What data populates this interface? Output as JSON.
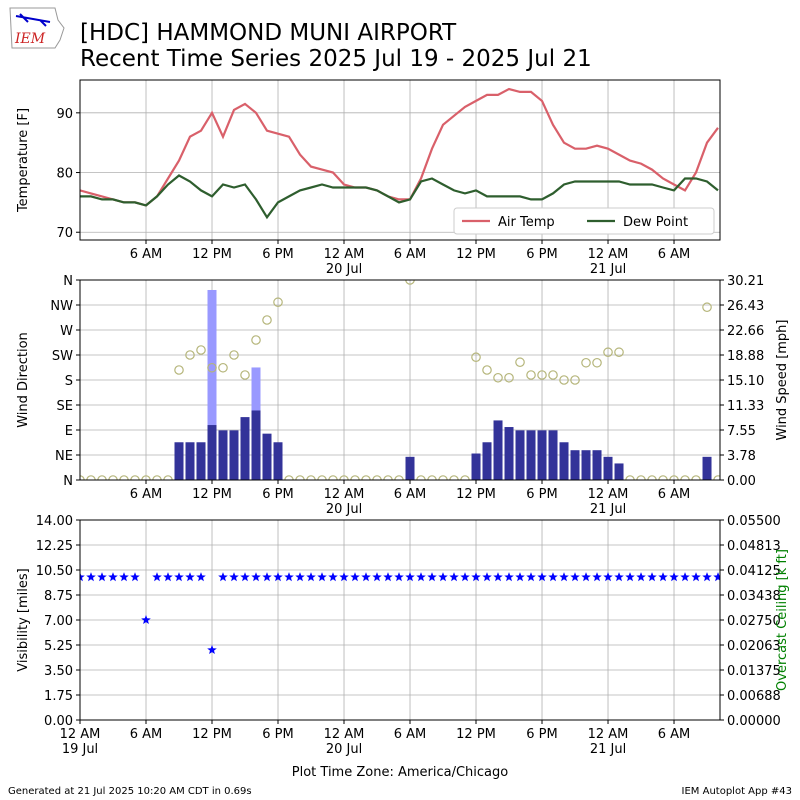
{
  "logo": "IEM",
  "title_lines": [
    "[HDC] HAMMOND MUNI AIRPORT",
    "Recent Time Series 2025 Jul 19 - 2025 Jul 21"
  ],
  "footer_left": "Generated at 21 Jul 2025 10:20 AM CDT in 0.69s",
  "footer_right": "IEM Autoplot App #43",
  "chart_data": [
    {
      "type": "line",
      "ylabel": "Temperature [F]",
      "grid": true,
      "legend": "lower right",
      "xlim": [
        0,
        58.18
      ],
      "ylim": [
        68.7,
        95.5
      ],
      "yticks": [
        70,
        80,
        90
      ],
      "xticks": [
        {
          "value": 6,
          "label": "6 AM"
        },
        {
          "value": 12,
          "label": "12 PM"
        },
        {
          "value": 18,
          "label": "6 PM"
        },
        {
          "value": 24,
          "label": "12 AM\n20 Jul"
        },
        {
          "value": 30,
          "label": "6 AM"
        },
        {
          "value": 36,
          "label": "12 PM"
        },
        {
          "value": 42,
          "label": "6 PM"
        },
        {
          "value": 48,
          "label": "12 AM\n21 Jul"
        },
        {
          "value": 54,
          "label": "6 AM"
        }
      ],
      "x": [
        0,
        1,
        2,
        3,
        4,
        5,
        6,
        7,
        8,
        9,
        10,
        11,
        12,
        13,
        14,
        15,
        16,
        17,
        18,
        19,
        20,
        21,
        22,
        23,
        24,
        25,
        26,
        27,
        28,
        29,
        30,
        31,
        32,
        33,
        34,
        35,
        36,
        37,
        38,
        39,
        40,
        41,
        42,
        43,
        44,
        45,
        46,
        47,
        48,
        49,
        50,
        51,
        52,
        53,
        54,
        55,
        56,
        57,
        58
      ],
      "series": [
        {
          "name": "Air Temp",
          "color": "#d9606a",
          "values": [
            77,
            76.5,
            76,
            75.5,
            75,
            75,
            74.5,
            76,
            79,
            82,
            86,
            87,
            90,
            86,
            90.5,
            91.5,
            90,
            87,
            86.5,
            86,
            83,
            81,
            80.5,
            80,
            78,
            77.5,
            77.5,
            77,
            76,
            75.5,
            75.5,
            79,
            84,
            88,
            89.5,
            91,
            92,
            93,
            93,
            94,
            93.5,
            93.5,
            92,
            88,
            85,
            84,
            84,
            84.5,
            84,
            83,
            82,
            81.5,
            80.5,
            79,
            78,
            77,
            80,
            85,
            87.5
          ]
        },
        {
          "name": "Dew Point",
          "color": "#2e5e2e",
          "values": [
            76,
            76,
            75.5,
            75.5,
            75,
            75,
            74.5,
            76,
            78,
            79.5,
            78.5,
            77,
            76,
            78,
            77.5,
            78,
            75.5,
            72.5,
            75,
            76,
            77,
            77.5,
            78,
            77.5,
            77.5,
            77.5,
            77.5,
            77,
            76,
            75,
            75.5,
            78.5,
            79,
            78,
            77,
            76.5,
            77,
            76,
            76,
            76,
            76,
            75.5,
            75.5,
            76.5,
            78,
            78.5,
            78.5,
            78.5,
            78.5,
            78.5,
            78,
            78,
            78,
            77.5,
            77,
            79,
            79,
            78.5,
            77
          ]
        }
      ]
    },
    {
      "type": "wind",
      "ylabel": "Wind Direction",
      "y2label": "Wind Speed [mph]",
      "grid": true,
      "xlim": [
        0,
        58.18
      ],
      "ylim": [
        0,
        360
      ],
      "yticks": [
        {
          "value": 0,
          "label": "N"
        },
        {
          "value": 45,
          "label": "NE"
        },
        {
          "value": 90,
          "label": "E"
        },
        {
          "value": 135,
          "label": "SE"
        },
        {
          "value": 180,
          "label": "S"
        },
        {
          "value": 225,
          "label": "SW"
        },
        {
          "value": 270,
          "label": "W"
        },
        {
          "value": 315,
          "label": "NW"
        },
        {
          "value": 360,
          "label": "N"
        }
      ],
      "y2lim": [
        0,
        30.21
      ],
      "y2ticks": [
        {
          "value": 0,
          "label": "0.00"
        },
        {
          "value": 3.776,
          "label": "3.78"
        },
        {
          "value": 7.553,
          "label": "7.55"
        },
        {
          "value": 11.329,
          "label": "11.33"
        },
        {
          "value": 15.105,
          "label": "15.10"
        },
        {
          "value": 18.881,
          "label": "18.88"
        },
        {
          "value": 22.658,
          "label": "22.66"
        },
        {
          "value": 26.434,
          "label": "26.43"
        },
        {
          "value": 30.21,
          "label": "30.21"
        }
      ],
      "xticks": [
        {
          "value": 6,
          "label": "6 AM"
        },
        {
          "value": 12,
          "label": "12 PM"
        },
        {
          "value": 18,
          "label": "6 PM"
        },
        {
          "value": 24,
          "label": "12 AM\n20 Jul"
        },
        {
          "value": 30,
          "label": "6 AM"
        },
        {
          "value": 36,
          "label": "12 PM"
        },
        {
          "value": 42,
          "label": "6 PM"
        },
        {
          "value": 48,
          "label": "12 AM\n21 Jul"
        },
        {
          "value": 54,
          "label": "6 AM"
        }
      ],
      "x": [
        0,
        1,
        2,
        3,
        4,
        5,
        6,
        7,
        8,
        9,
        10,
        11,
        12,
        13,
        14,
        15,
        16,
        17,
        18,
        19,
        20,
        21,
        22,
        23,
        24,
        25,
        26,
        27,
        28,
        29,
        30,
        31,
        32,
        33,
        34,
        35,
        36,
        37,
        38,
        39,
        40,
        41,
        42,
        43,
        44,
        45,
        46,
        47,
        48,
        49,
        50,
        51,
        52,
        53,
        54,
        55,
        56,
        57,
        58
      ],
      "series": [
        {
          "kind": "bar",
          "axis": "y2",
          "color": "#9999ff",
          "values": [
            null,
            null,
            null,
            null,
            null,
            null,
            null,
            null,
            null,
            null,
            null,
            null,
            28.7,
            null,
            null,
            null,
            17,
            null,
            null,
            null,
            null,
            null,
            null,
            null,
            null,
            null,
            null,
            null,
            null,
            null,
            null,
            null,
            null,
            null,
            null,
            null,
            null,
            null,
            null,
            null,
            null,
            null,
            null,
            null,
            null,
            null,
            null,
            null,
            null,
            null,
            null,
            null,
            null,
            null,
            null,
            null,
            null,
            null,
            null
          ]
        },
        {
          "kind": "bar",
          "axis": "y2",
          "color": "#333399",
          "values": [
            0,
            0,
            0,
            0,
            0,
            0,
            0,
            0,
            0,
            5.7,
            5.7,
            5.7,
            8.3,
            7.5,
            7.5,
            9.5,
            10.5,
            7,
            5.7,
            0,
            0,
            0,
            0,
            0,
            0,
            0,
            0,
            0,
            0,
            0,
            3.5,
            0,
            0,
            0,
            0,
            0,
            4,
            5.7,
            9,
            8,
            7.5,
            7.5,
            7.5,
            7.5,
            5.7,
            4.5,
            4.5,
            4.5,
            3.5,
            2.5,
            0,
            0,
            0,
            0,
            0,
            0,
            0,
            3.5,
            0
          ]
        },
        {
          "kind": "scatter",
          "color": "#b5b57a",
          "values": [
            0,
            0,
            0,
            0,
            0,
            0,
            0,
            0,
            0,
            198,
            225,
            234,
            202,
            202,
            225,
            189,
            252,
            288,
            320,
            0,
            0,
            0,
            0,
            0,
            0,
            0,
            0,
            0,
            0,
            0,
            360,
            0,
            0,
            0,
            0,
            0,
            221,
            198,
            184,
            184,
            212,
            189,
            189,
            189,
            180,
            180,
            211,
            211,
            230,
            230,
            0,
            0,
            0,
            0,
            0,
            0,
            0,
            311,
            0
          ]
        }
      ]
    },
    {
      "type": "scatter",
      "ylabel": "Visibility [miles]",
      "y2label": "Overcast Ceiling [k ft]",
      "y2label_color": "#008000",
      "xlabel": "Plot Time Zone: America/Chicago",
      "grid": true,
      "xlim": [
        0,
        58.18
      ],
      "ylim": [
        0,
        14
      ],
      "yticks": [
        {
          "value": 0,
          "label": "0.00"
        },
        {
          "value": 1.75,
          "label": "1.75"
        },
        {
          "value": 3.5,
          "label": "3.50"
        },
        {
          "value": 5.25,
          "label": "5.25"
        },
        {
          "value": 7,
          "label": "7.00"
        },
        {
          "value": 8.75,
          "label": "8.75"
        },
        {
          "value": 10.5,
          "label": "10.50"
        },
        {
          "value": 12.25,
          "label": "12.25"
        },
        {
          "value": 14,
          "label": "14.00"
        }
      ],
      "y2lim": [
        0,
        0.055
      ],
      "y2ticks": [
        {
          "value": 0,
          "label": "0.00000"
        },
        {
          "value": 0.006875,
          "label": "0.00688"
        },
        {
          "value": 0.01375,
          "label": "0.01375"
        },
        {
          "value": 0.020625,
          "label": "0.02063"
        },
        {
          "value": 0.0275,
          "label": "0.02750"
        },
        {
          "value": 0.034375,
          "label": "0.03438"
        },
        {
          "value": 0.04125,
          "label": "0.04125"
        },
        {
          "value": 0.048125,
          "label": "0.04813"
        },
        {
          "value": 0.055,
          "label": "0.05500"
        }
      ],
      "xticks": [
        {
          "value": 0,
          "label": "12 AM\n19 Jul"
        },
        {
          "value": 6,
          "label": "6 AM"
        },
        {
          "value": 12,
          "label": "12 PM"
        },
        {
          "value": 18,
          "label": "6 PM"
        },
        {
          "value": 24,
          "label": "12 AM\n20 Jul"
        },
        {
          "value": 30,
          "label": "6 AM"
        },
        {
          "value": 36,
          "label": "12 PM"
        },
        {
          "value": 42,
          "label": "6 PM"
        },
        {
          "value": 48,
          "label": "12 AM\n21 Jul"
        },
        {
          "value": 54,
          "label": "6 AM"
        }
      ],
      "x": [
        0,
        1,
        2,
        3,
        4,
        5,
        6,
        7,
        8,
        9,
        10,
        11,
        12,
        13,
        14,
        15,
        16,
        17,
        18,
        19,
        20,
        21,
        22,
        23,
        24,
        25,
        26,
        27,
        28,
        29,
        30,
        31,
        32,
        33,
        34,
        35,
        36,
        37,
        38,
        39,
        40,
        41,
        42,
        43,
        44,
        45,
        46,
        47,
        48,
        49,
        50,
        51,
        52,
        53,
        54,
        55,
        56,
        57,
        58
      ],
      "series": [
        {
          "kind": "star",
          "color": "#0000ff",
          "values": [
            10,
            10,
            10,
            10,
            10,
            10,
            7,
            10,
            10,
            10,
            10,
            10,
            4.9,
            10,
            10,
            10,
            10,
            10,
            10,
            10,
            10,
            10,
            10,
            10,
            10,
            10,
            10,
            10,
            10,
            10,
            10,
            10,
            10,
            10,
            10,
            10,
            10,
            10,
            10,
            10,
            10,
            10,
            10,
            10,
            10,
            10,
            10,
            10,
            10,
            10,
            10,
            10,
            10,
            10,
            10,
            10,
            10,
            10,
            10
          ]
        }
      ]
    }
  ]
}
